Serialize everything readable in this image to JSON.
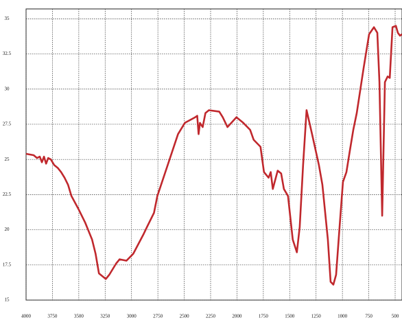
{
  "chart_data": {
    "type": "line",
    "x": [
      4000,
      3928,
      3896,
      3870,
      3850,
      3830,
      3810,
      3790,
      3765,
      3733,
      3700,
      3668,
      3635,
      3602,
      3570,
      3505,
      3439,
      3374,
      3341,
      3309,
      3244,
      3211,
      3146,
      3113,
      3048,
      2983,
      2885,
      2853,
      2787,
      2755,
      2657,
      2559,
      2494,
      2396,
      2377,
      2364,
      2351,
      2325,
      2299,
      2266,
      2168,
      2135,
      2090,
      2005,
      1940,
      1875,
      1842,
      1777,
      1744,
      1700,
      1680,
      1660,
      1614,
      1581,
      1555,
      1516,
      1471,
      1432,
      1405,
      1373,
      1340,
      1288,
      1223,
      1190,
      1138,
      1112,
      1086,
      1060,
      1027,
      995,
      962,
      930,
      897,
      864,
      799,
      747,
      701,
      669,
      649,
      623,
      597,
      571,
      551,
      525,
      493,
      474,
      454,
      435
    ],
    "series": [
      {
        "color": "#c0282d",
        "values": [
          25.4,
          25.3,
          25.1,
          25.2,
          24.8,
          25.2,
          24.7,
          25.1,
          25.0,
          24.6,
          24.4,
          24.1,
          23.7,
          23.2,
          22.4,
          21.5,
          20.5,
          19.3,
          18.3,
          16.9,
          16.5,
          16.8,
          17.6,
          17.9,
          17.8,
          18.3,
          19.7,
          20.2,
          21.2,
          22.4,
          24.6,
          26.8,
          27.6,
          28.0,
          28.1,
          26.8,
          27.6,
          27.3,
          28.3,
          28.5,
          28.4,
          28.0,
          27.3,
          28.0,
          27.6,
          27.1,
          26.4,
          25.9,
          24.1,
          23.7,
          24.1,
          22.9,
          24.2,
          24.0,
          22.9,
          22.4,
          19.3,
          18.4,
          20.2,
          24.6,
          28.5,
          26.8,
          24.6,
          23.2,
          19.3,
          16.3,
          16.1,
          16.8,
          20.2,
          23.4,
          24.1,
          25.6,
          27.1,
          28.3,
          31.5,
          33.9,
          34.4,
          34.0,
          30.5,
          21.0,
          30.5,
          30.9,
          30.8,
          34.4,
          34.5,
          34.0,
          33.8,
          33.9
        ]
      }
    ],
    "xlim": [
      4000,
      435
    ],
    "ylim": [
      15,
      35.7
    ],
    "xticks": [
      4000,
      3750,
      3500,
      3250,
      3000,
      2750,
      2500,
      2250,
      2000,
      1750,
      1500,
      1250,
      1000,
      750,
      500
    ],
    "yticks": [
      15,
      17.5,
      20,
      22.5,
      25,
      27.5,
      30,
      32.5,
      35
    ],
    "grid": true
  }
}
